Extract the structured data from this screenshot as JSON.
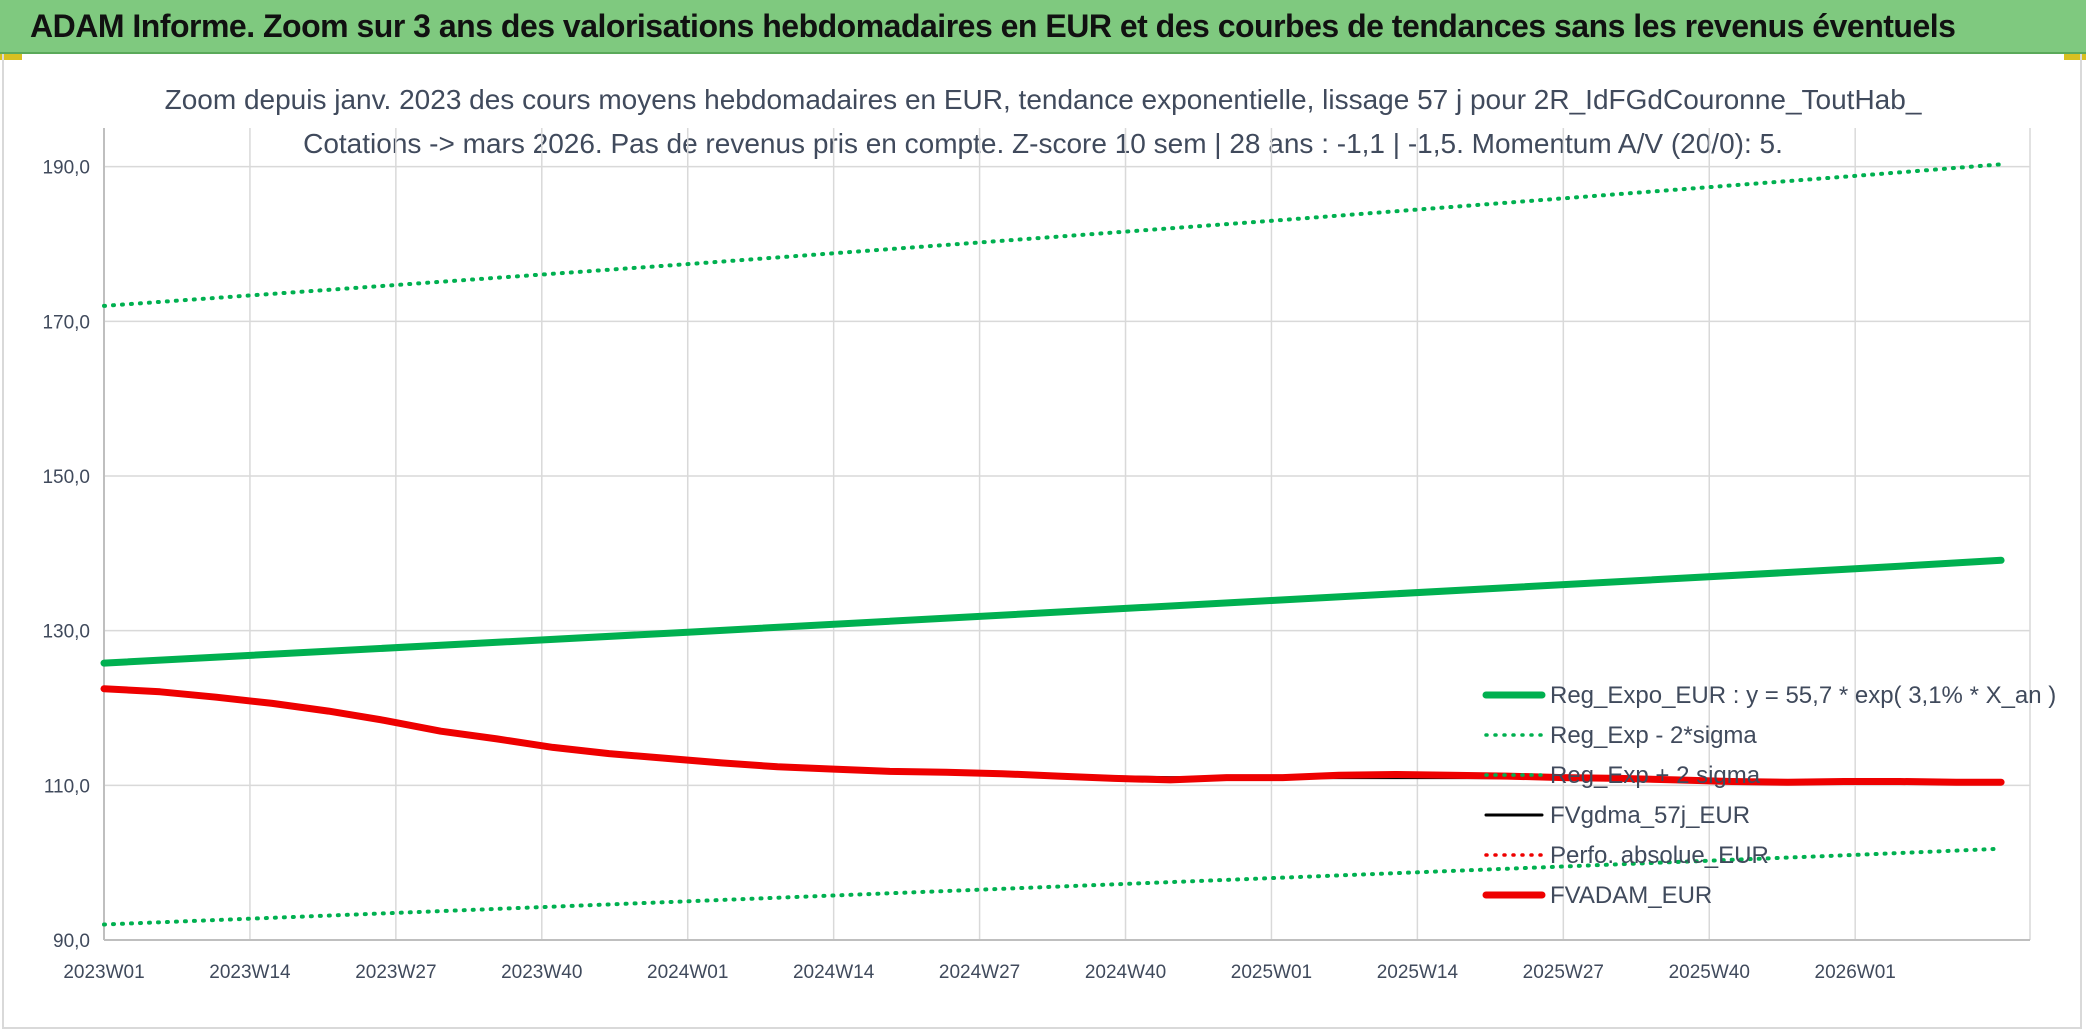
{
  "header": {
    "title": "ADAM Informe. Zoom sur 3 ans des valorisations hebdomadaires en EUR et des courbes de tendances sans les revenus éventuels"
  },
  "colors": {
    "banner": "#7fc97f",
    "green": "#00b050",
    "black": "#000000",
    "red": "#ee0000",
    "grid": "#d9d9d9",
    "text": "#404a5c"
  },
  "chart_data": {
    "type": "line",
    "title_line1": "Zoom depuis janv. 2023 des cours moyens hebdomadaires en EUR, tendance exponentielle, lissage 57 j pour 2R_IdFGdCouronne_ToutHab_",
    "title_line2": "Cotations -> mars 2026. Pas de revenus pris en compte. Z-score 10 sem | 28 ans : -1,1 | -1,5. Momentum A/V (20/0): 5.",
    "xlabel": "",
    "ylabel": "",
    "x_tick_labels": [
      "2023W01",
      "2023W14",
      "2023W27",
      "2023W40",
      "2024W01",
      "2024W14",
      "2024W27",
      "2024W40",
      "2025W01",
      "2025W14",
      "2025W27",
      "2025W40",
      "2026W01"
    ],
    "x_range_weeks": [
      0,
      169
    ],
    "ylim": [
      90,
      195
    ],
    "y_ticks": [
      90,
      110,
      130,
      150,
      170,
      190
    ],
    "y_tick_labels": [
      "90,0",
      "110,0",
      "130,0",
      "150,0",
      "170,0",
      "190,0"
    ],
    "grid": true,
    "legend_position": "bottom-right",
    "series": [
      {
        "name": "Reg_Expo_EUR : y = 55,7 * exp( 3,1% *  X_an )",
        "style": "solid-thick",
        "color": "#00b050",
        "x": [
          0,
          52,
          104,
          156,
          169
        ],
        "y": [
          125.8,
          129.8,
          133.9,
          138.0,
          139.1
        ]
      },
      {
        "name": "Reg_Exp - 2*sigma",
        "style": "dotted",
        "color": "#00b050",
        "x": [
          0,
          52,
          104,
          156,
          169
        ],
        "y": [
          92.0,
          95.0,
          98.0,
          101.0,
          101.8
        ]
      },
      {
        "name": "Reg_Exp + 2 sigma",
        "style": "dotted",
        "color": "#00b050",
        "x": [
          0,
          52,
          104,
          156,
          169
        ],
        "y": [
          172.0,
          177.4,
          183.0,
          188.8,
          190.3
        ]
      },
      {
        "name": "FVgdma_57j_EUR",
        "style": "solid",
        "color": "#000000",
        "x": [
          0,
          5,
          10,
          15,
          20,
          25,
          30,
          35,
          40,
          45,
          50,
          55,
          60,
          65,
          70,
          75,
          80,
          85,
          90,
          95,
          100,
          105,
          110,
          115,
          120,
          125,
          130,
          135,
          140,
          145,
          150,
          155,
          160,
          165,
          169
        ],
        "y": [
          122.3,
          122.0,
          121.2,
          120.4,
          119.5,
          118.2,
          116.9,
          115.9,
          114.8,
          114.0,
          113.3,
          112.8,
          112.3,
          112.0,
          111.8,
          111.7,
          111.5,
          111.3,
          111.1,
          111.0,
          111.0,
          111.0,
          111.0,
          111.0,
          111.0,
          111.0,
          111.0,
          110.9,
          110.7,
          110.6,
          110.5,
          110.5,
          110.5,
          110.4,
          110.4
        ]
      },
      {
        "name": "Perfo. absolue_EUR",
        "style": "dotted",
        "color": "#ee0000",
        "x": [],
        "y": []
      },
      {
        "name": "FVADAM_EUR",
        "style": "solid-thick",
        "color": "#ee0000",
        "x": [
          0,
          5,
          10,
          15,
          20,
          25,
          30,
          35,
          40,
          45,
          50,
          55,
          60,
          65,
          70,
          75,
          80,
          85,
          90,
          95,
          100,
          105,
          110,
          115,
          120,
          125,
          130,
          135,
          140,
          145,
          150,
          155,
          160,
          165,
          169
        ],
        "y": [
          122.5,
          122.1,
          121.4,
          120.6,
          119.6,
          118.4,
          117.0,
          116.0,
          114.9,
          114.1,
          113.5,
          112.9,
          112.4,
          112.1,
          111.8,
          111.7,
          111.5,
          111.2,
          110.9,
          110.7,
          111.0,
          111.0,
          111.3,
          111.4,
          111.3,
          111.2,
          111.0,
          110.9,
          110.7,
          110.5,
          110.4,
          110.5,
          110.5,
          110.4,
          110.4
        ]
      }
    ]
  }
}
